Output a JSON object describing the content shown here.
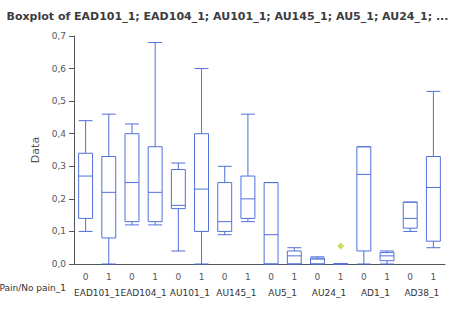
{
  "chart_data": {
    "type": "boxplot",
    "title": "Boxplot of EAD101_1; EAD104_1; AU101_1; AU145_1; AU5_1; AU24_1; ...",
    "ylabel": "Data",
    "group_label": "Pain/No pain_1",
    "categories": [
      "EAD101_1",
      "EAD104_1",
      "AU101_1",
      "AU145_1",
      "AU5_1",
      "AU24_1",
      "AD1_1",
      "AD38_1"
    ],
    "subcategories": [
      "0",
      "1"
    ],
    "ylim": [
      0.0,
      0.7
    ],
    "yticks": [
      {
        "value": 0.0,
        "label": "0,0"
      },
      {
        "value": 0.1,
        "label": "0,1"
      },
      {
        "value": 0.2,
        "label": "0,2"
      },
      {
        "value": 0.3,
        "label": "0,3"
      },
      {
        "value": 0.4,
        "label": "0,4"
      },
      {
        "value": 0.5,
        "label": "0,5"
      },
      {
        "value": 0.6,
        "label": "0,6"
      },
      {
        "value": 0.7,
        "label": "0,7"
      }
    ],
    "grid": false,
    "boxes": [
      {
        "group": "EAD101_1",
        "sub": "0",
        "q1": 0.14,
        "median": 0.27,
        "q3": 0.34,
        "whislo": 0.1,
        "whishi": 0.44,
        "fliers": []
      },
      {
        "group": "EAD101_1",
        "sub": "1",
        "q1": 0.08,
        "median": 0.22,
        "q3": 0.33,
        "whislo": 0.0,
        "whishi": 0.46,
        "fliers": []
      },
      {
        "group": "EAD104_1",
        "sub": "0",
        "q1": 0.13,
        "median": 0.25,
        "q3": 0.4,
        "whislo": 0.12,
        "whishi": 0.43,
        "fliers": []
      },
      {
        "group": "EAD104_1",
        "sub": "1",
        "q1": 0.13,
        "median": 0.22,
        "q3": 0.36,
        "whislo": 0.12,
        "whishi": 0.68,
        "fliers": []
      },
      {
        "group": "AU101_1",
        "sub": "0",
        "q1": 0.17,
        "median": 0.18,
        "q3": 0.29,
        "whislo": 0.04,
        "whishi": 0.31,
        "fliers": []
      },
      {
        "group": "AU101_1",
        "sub": "1",
        "q1": 0.1,
        "median": 0.23,
        "q3": 0.4,
        "whislo": 0.0,
        "whishi": 0.6,
        "fliers": []
      },
      {
        "group": "AU145_1",
        "sub": "0",
        "q1": 0.1,
        "median": 0.13,
        "q3": 0.25,
        "whislo": 0.09,
        "whishi": 0.3,
        "fliers": []
      },
      {
        "group": "AU145_1",
        "sub": "1",
        "q1": 0.14,
        "median": 0.2,
        "q3": 0.27,
        "whislo": 0.13,
        "whishi": 0.46,
        "fliers": []
      },
      {
        "group": "AU5_1",
        "sub": "0",
        "q1": 0.0,
        "median": 0.09,
        "q3": 0.25,
        "whislo": 0.0,
        "whishi": 0.25,
        "fliers": []
      },
      {
        "group": "AU5_1",
        "sub": "1",
        "q1": 0.0,
        "median": 0.025,
        "q3": 0.04,
        "whislo": 0.0,
        "whishi": 0.05,
        "fliers": []
      },
      {
        "group": "AU24_1",
        "sub": "0",
        "q1": 0.0,
        "median": 0.015,
        "q3": 0.018,
        "whislo": 0.0,
        "whishi": 0.022,
        "fliers": []
      },
      {
        "group": "AU24_1",
        "sub": "1",
        "q1": 0.0,
        "median": 0.0,
        "q3": 0.0,
        "whislo": 0.0,
        "whishi": 0.0,
        "fliers": [
          0.055
        ]
      },
      {
        "group": "AD1_1",
        "sub": "0",
        "q1": 0.04,
        "median": 0.275,
        "q3": 0.36,
        "whislo": 0.0,
        "whishi": 0.36,
        "fliers": []
      },
      {
        "group": "AD1_1",
        "sub": "1",
        "q1": 0.01,
        "median": 0.025,
        "q3": 0.035,
        "whislo": 0.0,
        "whishi": 0.04,
        "fliers": []
      },
      {
        "group": "AD38_1",
        "sub": "0",
        "q1": 0.11,
        "median": 0.14,
        "q3": 0.19,
        "whislo": 0.1,
        "whishi": 0.19,
        "fliers": []
      },
      {
        "group": "AD38_1",
        "sub": "1",
        "q1": 0.07,
        "median": 0.235,
        "q3": 0.33,
        "whislo": 0.05,
        "whishi": 0.53,
        "fliers": []
      }
    ]
  }
}
